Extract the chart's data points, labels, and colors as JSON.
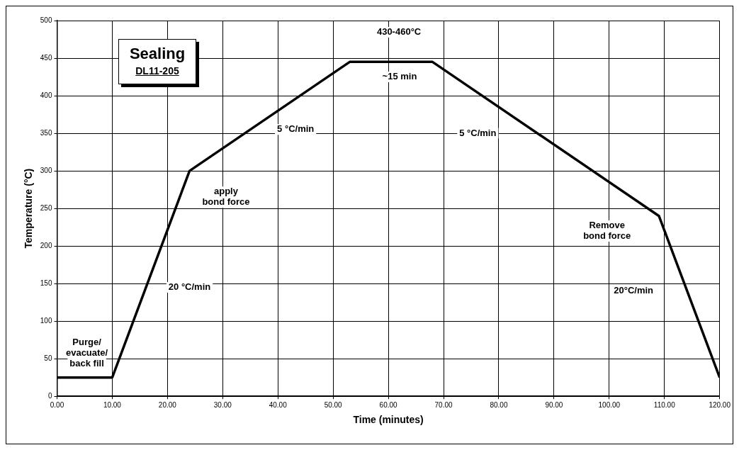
{
  "chart_data": {
    "type": "line",
    "title": "Sealing",
    "subtitle": "DL11-205",
    "xlabel": "Time (minutes)",
    "ylabel": "Temperature (°C)",
    "x": [
      0,
      10,
      24,
      53,
      68,
      109,
      120
    ],
    "series": [
      {
        "color": "#000000",
        "values": [
          25,
          25,
          300,
          445,
          445,
          240,
          25
        ]
      }
    ],
    "xlim": [
      0,
      120
    ],
    "xticks": [
      {
        "value": 0,
        "label": "0.00"
      },
      {
        "value": 10,
        "label": "10.00"
      },
      {
        "value": 20,
        "label": "20.00"
      },
      {
        "value": 30,
        "label": "30.00"
      },
      {
        "value": 40,
        "label": "40.00"
      },
      {
        "value": 50,
        "label": "50.00"
      },
      {
        "value": 60,
        "label": "60.00"
      },
      {
        "value": 70,
        "label": "70.00"
      },
      {
        "value": 80,
        "label": "80.00"
      },
      {
        "value": 90,
        "label": "90.00"
      },
      {
        "value": 100,
        "label": "100.00"
      },
      {
        "value": 110,
        "label": "110.00"
      },
      {
        "value": 120,
        "label": "120.00"
      }
    ],
    "ylim": [
      0,
      500
    ],
    "yticks": [
      0,
      50,
      100,
      150,
      200,
      250,
      300,
      350,
      400,
      450,
      500
    ],
    "grid": true,
    "legend": false,
    "marker": "none",
    "line_style": "solid",
    "annotations": [
      "430-460°C",
      "~15 min",
      "5 °C/min",
      "5 °C/min",
      "apply\nbond force",
      "20 °C/min",
      "Remove\nbond force",
      "20°C/min",
      "Purge/\nevacuate/\nback fill"
    ]
  }
}
